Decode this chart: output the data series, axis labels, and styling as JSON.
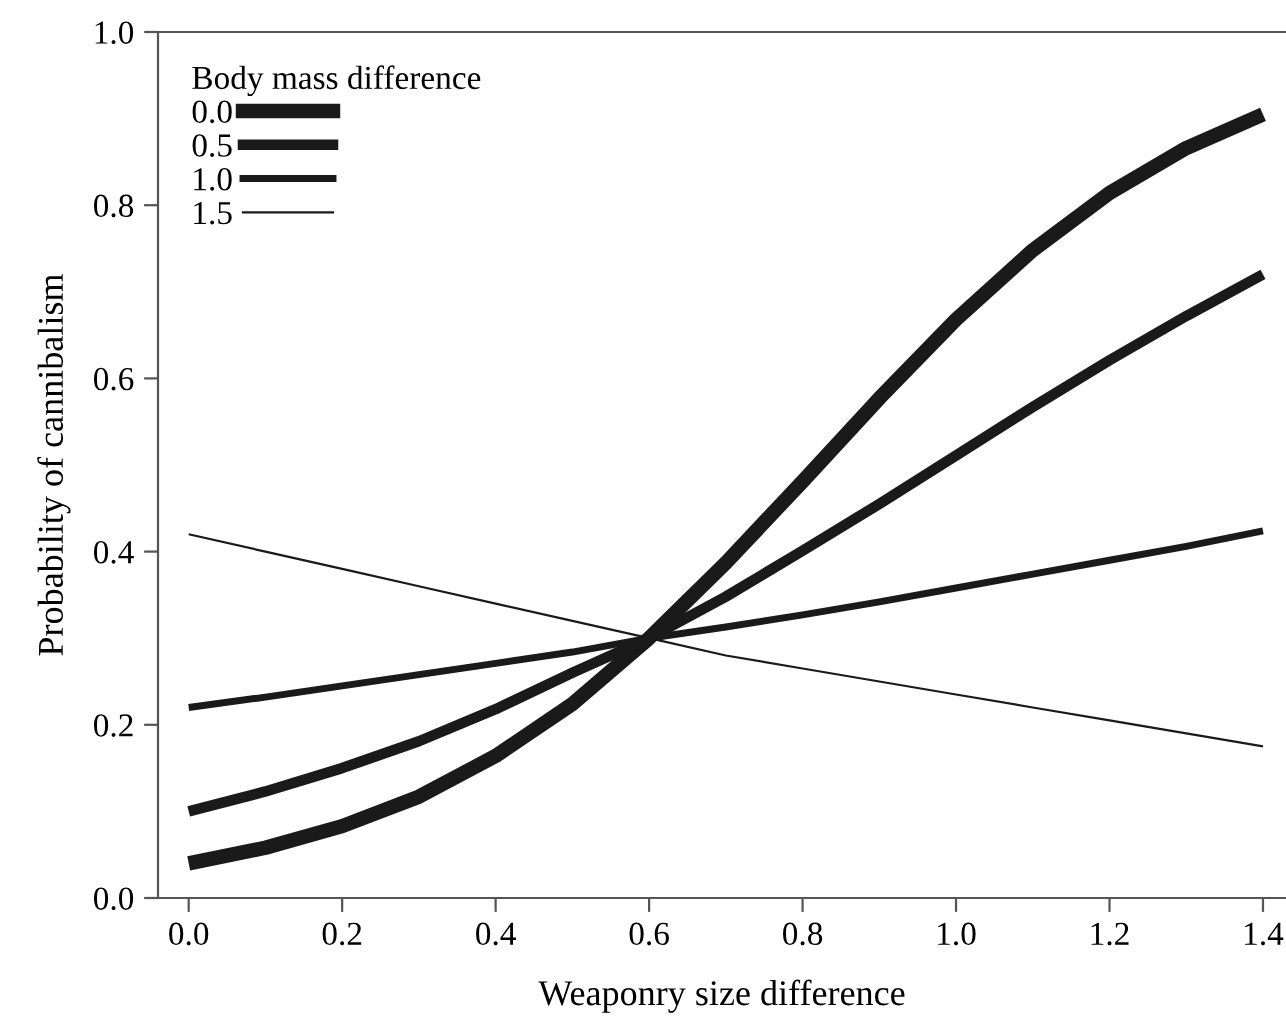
{
  "chart_data": {
    "type": "line",
    "xlabel": "Weaponry size difference",
    "ylabel": "Probability of cannibalism",
    "legend_title": "Body mass difference",
    "legend": "top left",
    "grid": false,
    "x": [
      0.0,
      0.1,
      0.2,
      0.3,
      0.4,
      0.5,
      0.6,
      0.7,
      0.8,
      0.9,
      1.0,
      1.1,
      1.2,
      1.3,
      1.4
    ],
    "series": [
      {
        "name": "0.0",
        "color": "#1a1a1a",
        "values": [
          0.04,
          0.058,
          0.083,
          0.117,
          0.164,
          0.224,
          0.3,
          0.387,
          0.481,
          0.577,
          0.668,
          0.748,
          0.814,
          0.866,
          0.905
        ]
      },
      {
        "name": "0.5",
        "color": "#1a1a1a",
        "values": [
          0.1,
          0.123,
          0.15,
          0.181,
          0.218,
          0.26,
          0.3,
          0.348,
          0.401,
          0.455,
          0.511,
          0.567,
          0.621,
          0.672,
          0.72
        ]
      },
      {
        "name": "1.0",
        "color": "#1a1a1a",
        "values": [
          0.22,
          0.232,
          0.245,
          0.258,
          0.271,
          0.284,
          0.3,
          0.313,
          0.327,
          0.342,
          0.358,
          0.374,
          0.39,
          0.406,
          0.424
        ]
      },
      {
        "name": "1.5",
        "color": "#1a1a1a",
        "values": [
          0.42,
          0.4,
          0.38,
          0.36,
          0.34,
          0.32,
          0.3,
          0.28,
          0.265,
          0.25,
          0.235,
          0.22,
          0.205,
          0.19,
          0.175
        ]
      }
    ],
    "xlim": [
      -0.04,
      1.43
    ],
    "ylim": [
      0,
      1.0
    ],
    "xticks": [
      {
        "value": 0,
        "label": "0.0"
      },
      0.2,
      0.4,
      0.6,
      0.8,
      {
        "value": 1,
        "label": "1.0"
      },
      1.2,
      1.4
    ],
    "yticks": [
      {
        "value": 0,
        "label": "0.0"
      },
      0.2,
      0.4,
      0.6,
      0.8,
      {
        "value": 1,
        "label": "1.0"
      }
    ],
    "marker": "none",
    "line_style": "solid"
  }
}
